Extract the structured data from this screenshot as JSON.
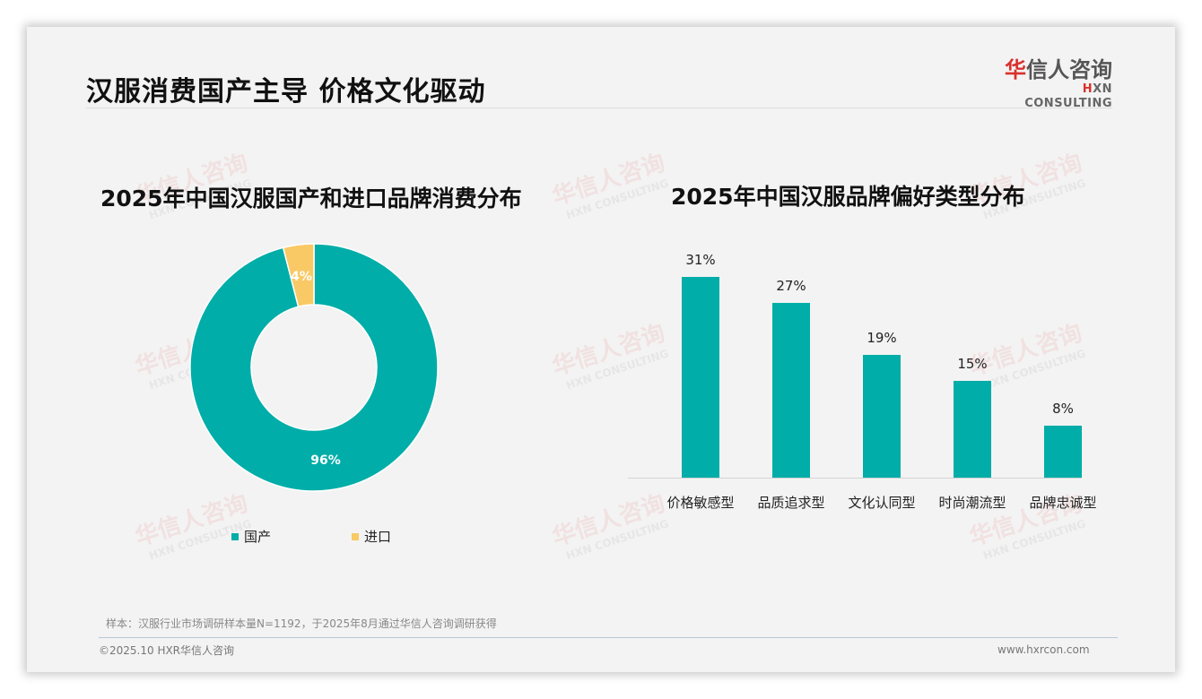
{
  "header": {
    "title": "汉服消费国产主导 价格文化驱动",
    "logo_cn_first": "华",
    "logo_cn_rest": "信人咨询",
    "logo_en_first": "H",
    "logo_en_rest": "XN CONSULTING"
  },
  "watermark": {
    "cn": "华信人咨询",
    "en": "HXN CONSULTING"
  },
  "colors": {
    "teal": "#00ada8",
    "yellow": "#f9c965",
    "title": "#111111"
  },
  "chart_data": [
    {
      "type": "pie",
      "subtype": "donut",
      "title": "2025年中国汉服国产和进口品牌消费分布",
      "categories": [
        "国产",
        "进口"
      ],
      "values": [
        96,
        4
      ],
      "value_labels": [
        "96%",
        "4%"
      ],
      "colors": [
        "#00ada8",
        "#f9c965"
      ],
      "legend_position": "bottom"
    },
    {
      "type": "bar",
      "title": "2025年中国汉服品牌偏好类型分布",
      "categories": [
        "价格敏感型",
        "品质追求型",
        "文化认同型",
        "时尚潮流型",
        "品牌忠诚型"
      ],
      "values": [
        31,
        27,
        19,
        15,
        8
      ],
      "value_labels": [
        "31%",
        "27%",
        "19%",
        "15%",
        "8%"
      ],
      "xlabel": "",
      "ylabel": "",
      "unit": "%",
      "grid": false,
      "ylim": [
        0,
        35
      ],
      "color": "#00ada8"
    }
  ],
  "legend": {
    "item1": "国产",
    "item2": "进口"
  },
  "footer": {
    "note": "样本：汉服行业市场调研样本量N=1192，于2025年8月通过华信人咨询调研获得",
    "copyright": "©2025.10 HXR华信人咨询",
    "website": "www.hxrcon.com"
  }
}
